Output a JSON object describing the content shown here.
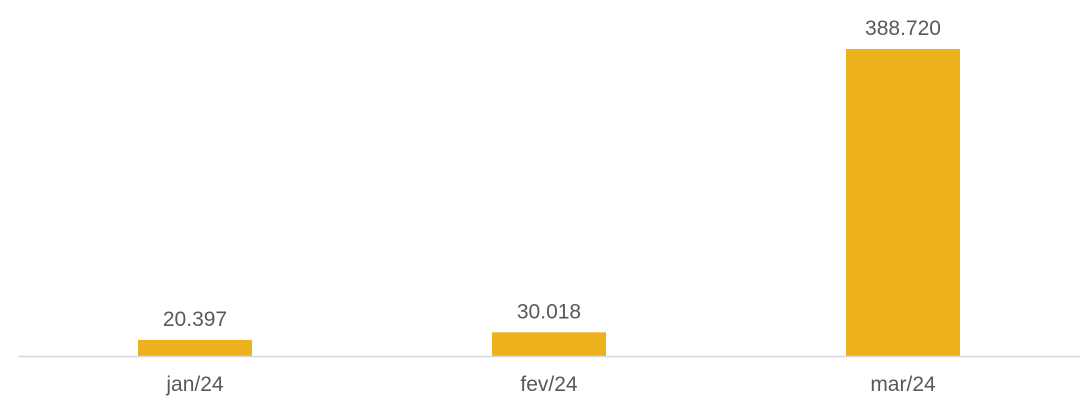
{
  "chart_data": {
    "type": "bar",
    "categories": [
      "jan/24",
      "fev/24",
      "mar/24"
    ],
    "values": [
      20397,
      30018,
      388720
    ],
    "data_labels": [
      "20.397",
      "30.018",
      "388.720"
    ],
    "title": "",
    "xlabel": "",
    "ylabel": "",
    "ylim": [
      0,
      400000
    ],
    "grid": false,
    "legend": "none",
    "bar_color": "#EDB11D",
    "axis_color": "#D9D9D9",
    "text_color": "#595959"
  }
}
